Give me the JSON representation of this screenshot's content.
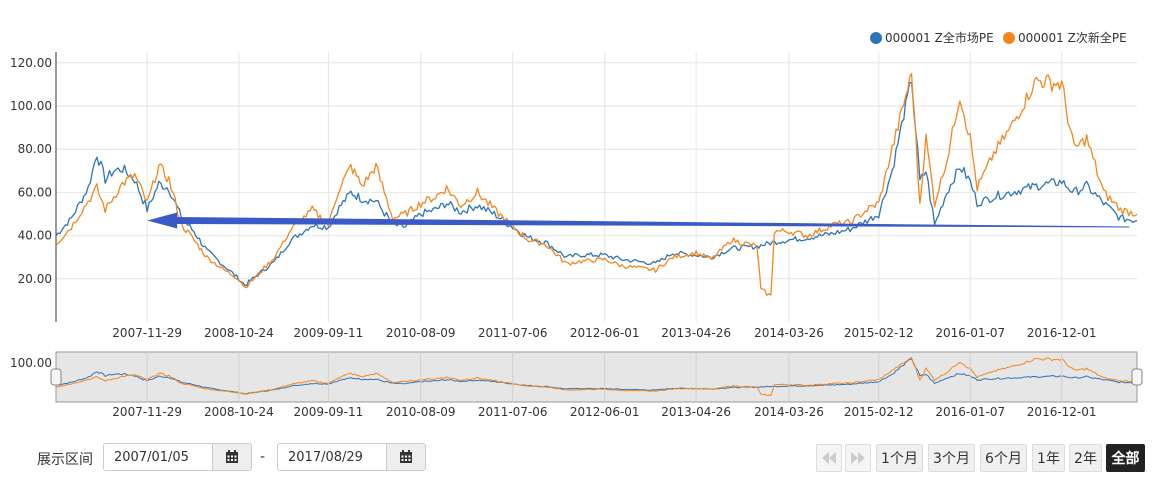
{
  "legend": [
    {
      "label": "000001 Z全市场PE",
      "color": "#2e75b6"
    },
    {
      "label": "000001 Z次新全PE",
      "color": "#f5861f"
    }
  ],
  "colors": {
    "series_a": "#2e75b6",
    "series_b": "#f5861f",
    "annotation_arrow": "#3a5bc7",
    "navigator_bg": "#e6e6e6"
  },
  "controls": {
    "range_label": "展示区间",
    "start_date": "2007/01/05",
    "separator": "-",
    "end_date": "2017/08/29",
    "calendar_icon": "calendar-icon",
    "zoom_buttons": [
      {
        "label": "1个月",
        "active": false
      },
      {
        "label": "3个月",
        "active": false
      },
      {
        "label": "6个月",
        "active": false
      },
      {
        "label": "1年",
        "active": false
      },
      {
        "label": "2年",
        "active": false
      },
      {
        "label": "全部",
        "active": true
      }
    ]
  },
  "chart_data": {
    "type": "line",
    "title": "",
    "xlabel": "",
    "ylabel": "",
    "ylim": [
      0,
      125
    ],
    "yticks": [
      "20.00",
      "40.00",
      "60.00",
      "80.00",
      "100.00",
      "120.00"
    ],
    "xticks": [
      "2007-11-29",
      "2008-10-24",
      "2009-09-11",
      "2010-08-09",
      "2011-07-06",
      "2012-06-01",
      "2013-04-26",
      "2014-03-26",
      "2015-02-12",
      "2016-01-07",
      "2016-12-01"
    ],
    "xrange": [
      "2007-01-05",
      "2017-08-29"
    ],
    "grid": true,
    "legend_position": "top-right",
    "series": [
      {
        "name": "000001 Z全市场PE",
        "points": [
          [
            "2007-01-05",
            40
          ],
          [
            "2007-03-01",
            48
          ],
          [
            "2007-05-01",
            62
          ],
          [
            "2007-06-01",
            78
          ],
          [
            "2007-07-01",
            66
          ],
          [
            "2007-08-01",
            70
          ],
          [
            "2007-09-01",
            71
          ],
          [
            "2007-10-15",
            66
          ],
          [
            "2007-11-29",
            52
          ],
          [
            "2008-01-10",
            64
          ],
          [
            "2008-02-15",
            62
          ],
          [
            "2008-04-01",
            48
          ],
          [
            "2008-05-15",
            42
          ],
          [
            "2008-07-01",
            33
          ],
          [
            "2008-09-01",
            26
          ],
          [
            "2008-10-24",
            20
          ],
          [
            "2008-11-15",
            17
          ],
          [
            "2009-01-01",
            22
          ],
          [
            "2009-03-01",
            28
          ],
          [
            "2009-05-01",
            38
          ],
          [
            "2009-07-15",
            45
          ],
          [
            "2009-09-11",
            44
          ],
          [
            "2009-10-20",
            53
          ],
          [
            "2009-12-01",
            60
          ],
          [
            "2010-01-10",
            57
          ],
          [
            "2010-03-01",
            56
          ],
          [
            "2010-05-01",
            45
          ],
          [
            "2010-06-15",
            44
          ],
          [
            "2010-08-09",
            50
          ],
          [
            "2010-10-01",
            52
          ],
          [
            "2010-11-10",
            55
          ],
          [
            "2011-01-01",
            51
          ],
          [
            "2011-03-01",
            54
          ],
          [
            "2011-05-01",
            50
          ],
          [
            "2011-07-06",
            44
          ],
          [
            "2011-09-01",
            39
          ],
          [
            "2011-11-01",
            37
          ],
          [
            "2012-01-15",
            30
          ],
          [
            "2012-03-01",
            31
          ],
          [
            "2012-06-01",
            31
          ],
          [
            "2012-08-01",
            29
          ],
          [
            "2012-10-01",
            28
          ],
          [
            "2012-12-01",
            27
          ],
          [
            "2013-02-01",
            32
          ],
          [
            "2013-04-26",
            31
          ],
          [
            "2013-06-20",
            30
          ],
          [
            "2013-09-01",
            34
          ],
          [
            "2013-12-01",
            35
          ],
          [
            "2014-02-01",
            37
          ],
          [
            "2014-03-26",
            38
          ],
          [
            "2014-06-01",
            39
          ],
          [
            "2014-09-01",
            41
          ],
          [
            "2014-11-01",
            43
          ],
          [
            "2015-01-01",
            47
          ],
          [
            "2015-02-12",
            50
          ],
          [
            "2015-04-01",
            70
          ],
          [
            "2015-06-10",
            113
          ],
          [
            "2015-07-10",
            65
          ],
          [
            "2015-08-01",
            70
          ],
          [
            "2015-09-01",
            45
          ],
          [
            "2015-10-15",
            60
          ],
          [
            "2015-12-01",
            72
          ],
          [
            "2016-01-07",
            65
          ],
          [
            "2016-02-01",
            55
          ],
          [
            "2016-04-01",
            58
          ],
          [
            "2016-06-01",
            60
          ],
          [
            "2016-09-01",
            63
          ],
          [
            "2016-12-01",
            65
          ],
          [
            "2017-01-15",
            60
          ],
          [
            "2017-03-01",
            63
          ],
          [
            "2017-05-01",
            55
          ],
          [
            "2017-07-01",
            48
          ],
          [
            "2017-08-29",
            47
          ]
        ]
      },
      {
        "name": "000001 Z次新全PE",
        "points": [
          [
            "2007-01-05",
            36
          ],
          [
            "2007-03-01",
            44
          ],
          [
            "2007-05-01",
            56
          ],
          [
            "2007-06-01",
            62
          ],
          [
            "2007-07-01",
            52
          ],
          [
            "2007-08-01",
            58
          ],
          [
            "2007-09-01",
            64
          ],
          [
            "2007-10-15",
            68
          ],
          [
            "2007-11-29",
            55
          ],
          [
            "2008-01-10",
            72
          ],
          [
            "2008-02-15",
            66
          ],
          [
            "2008-04-01",
            45
          ],
          [
            "2008-05-15",
            38
          ],
          [
            "2008-07-01",
            30
          ],
          [
            "2008-09-01",
            24
          ],
          [
            "2008-10-24",
            20
          ],
          [
            "2008-11-15",
            16
          ],
          [
            "2009-01-01",
            22
          ],
          [
            "2009-03-01",
            30
          ],
          [
            "2009-05-01",
            43
          ],
          [
            "2009-07-15",
            52
          ],
          [
            "2009-09-11",
            45
          ],
          [
            "2009-10-20",
            62
          ],
          [
            "2009-12-01",
            72
          ],
          [
            "2010-01-10",
            63
          ],
          [
            "2010-03-01",
            72
          ],
          [
            "2010-05-01",
            48
          ],
          [
            "2010-06-15",
            50
          ],
          [
            "2010-08-09",
            55
          ],
          [
            "2010-10-01",
            58
          ],
          [
            "2010-11-10",
            62
          ],
          [
            "2011-01-01",
            54
          ],
          [
            "2011-03-01",
            60
          ],
          [
            "2011-05-01",
            52
          ],
          [
            "2011-07-06",
            44
          ],
          [
            "2011-09-01",
            38
          ],
          [
            "2011-11-01",
            36
          ],
          [
            "2012-01-15",
            27
          ],
          [
            "2012-03-01",
            28
          ],
          [
            "2012-06-01",
            29
          ],
          [
            "2012-08-01",
            26
          ],
          [
            "2012-10-01",
            25
          ],
          [
            "2012-12-01",
            24
          ],
          [
            "2013-02-01",
            30
          ],
          [
            "2013-04-26",
            32
          ],
          [
            "2013-06-20",
            29
          ],
          [
            "2013-09-01",
            38
          ],
          [
            "2013-12-01",
            35
          ],
          [
            "2013-12-15",
            15
          ],
          [
            "2014-01-20",
            12
          ],
          [
            "2014-02-01",
            42
          ],
          [
            "2014-03-26",
            42
          ],
          [
            "2014-06-01",
            40
          ],
          [
            "2014-09-01",
            45
          ],
          [
            "2014-11-01",
            46
          ],
          [
            "2015-01-01",
            52
          ],
          [
            "2015-02-12",
            55
          ],
          [
            "2015-04-01",
            80
          ],
          [
            "2015-06-10",
            115
          ],
          [
            "2015-07-10",
            55
          ],
          [
            "2015-08-01",
            85
          ],
          [
            "2015-09-01",
            55
          ],
          [
            "2015-10-15",
            75
          ],
          [
            "2015-12-01",
            105
          ],
          [
            "2016-01-07",
            85
          ],
          [
            "2016-02-01",
            62
          ],
          [
            "2016-04-01",
            78
          ],
          [
            "2016-06-01",
            90
          ],
          [
            "2016-09-01",
            112
          ],
          [
            "2016-12-01",
            110
          ],
          [
            "2017-01-15",
            80
          ],
          [
            "2017-03-01",
            85
          ],
          [
            "2017-05-01",
            60
          ],
          [
            "2017-07-01",
            52
          ],
          [
            "2017-08-29",
            50
          ]
        ]
      }
    ],
    "annotations": [
      {
        "type": "arrow",
        "from": [
          "2017-08-01",
          44
        ],
        "to": [
          "2007-11-29",
          47
        ]
      }
    ]
  }
}
